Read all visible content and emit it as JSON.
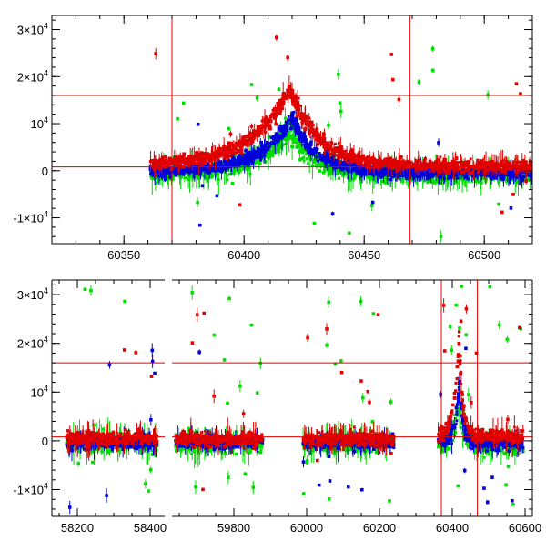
{
  "colors": {
    "red": "#e00000",
    "green": "#00dd00",
    "blue": "#0000dd",
    "axis": "#000000",
    "background": "#ffffff"
  },
  "chart_data": [
    {
      "type": "scatter",
      "panel": "top",
      "title": "",
      "xlabel": "",
      "ylabel": "",
      "xlim": [
        60320,
        60520
      ],
      "ylim": [
        -15500,
        33000
      ],
      "grid": false,
      "legend": "none",
      "x_ticks": [
        60350,
        60400,
        60450,
        60500
      ],
      "x_tick_labels": [
        "60350",
        "60400",
        "60450",
        "60500"
      ],
      "y_ticks": [
        -10000,
        0,
        10000,
        20000,
        30000
      ],
      "y_tick_labels": [
        {
          "mant": "-1×10",
          "exp": "4"
        },
        {
          "mant": "0",
          "exp": ""
        },
        {
          "mant": "10",
          "exp": "4"
        },
        {
          "mant": "2×10",
          "exp": "4"
        },
        {
          "mant": "3×10",
          "exp": "4"
        }
      ],
      "hlines": [
        16000,
        800
      ],
      "vlines": [
        60370,
        60469
      ],
      "series": [
        {
          "color_key": "red",
          "segments": [
            {
              "start": 60361,
              "end": 60520,
              "base": 1000,
              "peak": 16500,
              "peak_x": 60419,
              "wl": 16,
              "wr": 12
            }
          ],
          "scatter": 1700,
          "outliers": 14,
          "outlier_range": [
            -14000,
            32000
          ]
        },
        {
          "color_key": "blue",
          "segments": [
            {
              "start": 60361,
              "end": 60520,
              "base": -400,
              "peak": 11500,
              "peak_x": 60420,
              "wl": 14,
              "wr": 10
            }
          ],
          "scatter": 1700,
          "outliers": 12,
          "outlier_range": [
            -15000,
            10000
          ]
        },
        {
          "color_key": "green",
          "segments": [
            {
              "start": 60361,
              "end": 60520,
              "base": -800,
              "peak": 9500,
              "peak_x": 60419,
              "wl": 14,
              "wr": 10
            }
          ],
          "scatter": 2300,
          "outliers": 24,
          "outlier_range": [
            -15000,
            30000
          ]
        }
      ]
    },
    {
      "type": "scatter",
      "panel": "bottom",
      "title": "",
      "xlabel": "",
      "ylabel": "",
      "xlim": [
        58130,
        60620
      ],
      "ylim": [
        -15500,
        33000
      ],
      "grid": false,
      "legend": "none",
      "axis_break": {
        "left_end": 58450,
        "right_start": 59620
      },
      "x_ticks": [
        58200,
        58400,
        59800,
        60000,
        60200,
        60400,
        60600
      ],
      "x_tick_labels": [
        "58200",
        "58400",
        "59800",
        "60000",
        "60200",
        "60400",
        "60600"
      ],
      "y_ticks": [
        -10000,
        0,
        10000,
        20000,
        30000
      ],
      "y_tick_labels": [
        {
          "mant": "-1×10",
          "exp": "4"
        },
        {
          "mant": "0",
          "exp": ""
        },
        {
          "mant": "10",
          "exp": "4"
        },
        {
          "mant": "2×10",
          "exp": "4"
        },
        {
          "mant": "3×10",
          "exp": "4"
        }
      ],
      "hlines": [
        16000,
        800
      ],
      "vlines": [
        60370,
        60469
      ],
      "series": [
        {
          "color_key": "red",
          "segments": [
            {
              "start": 58170,
              "end": 58420,
              "base": 400,
              "peak": 0,
              "peak_x": 0,
              "wl": 1,
              "wr": 1
            },
            {
              "start": 59640,
              "end": 59880,
              "base": 400,
              "peak": 0,
              "peak_x": 0,
              "wl": 1,
              "wr": 1
            },
            {
              "start": 59990,
              "end": 60240,
              "base": 400,
              "peak": 0,
              "peak_x": 0,
              "wl": 1,
              "wr": 1
            },
            {
              "start": 60361,
              "end": 60595,
              "base": 800,
              "peak": 20000,
              "peak_x": 60419,
              "wl": 14,
              "wr": 10
            }
          ],
          "scatter": 2000,
          "outliers": 30,
          "outlier_range": [
            -14000,
            28000
          ]
        },
        {
          "color_key": "blue",
          "segments": [
            {
              "start": 58170,
              "end": 58420,
              "base": -300,
              "peak": 0,
              "peak_x": 0,
              "wl": 1,
              "wr": 1
            },
            {
              "start": 59640,
              "end": 59880,
              "base": -300,
              "peak": 0,
              "peak_x": 0,
              "wl": 1,
              "wr": 1
            },
            {
              "start": 59990,
              "end": 60240,
              "base": -300,
              "peak": 0,
              "peak_x": 0,
              "wl": 1,
              "wr": 1
            },
            {
              "start": 60361,
              "end": 60595,
              "base": -500,
              "peak": 13000,
              "peak_x": 60420,
              "wl": 12,
              "wr": 9
            }
          ],
          "scatter": 1800,
          "outliers": 24,
          "outlier_range": [
            -15000,
            20000
          ]
        },
        {
          "color_key": "green",
          "segments": [
            {
              "start": 58170,
              "end": 58420,
              "base": -500,
              "peak": 0,
              "peak_x": 0,
              "wl": 1,
              "wr": 1
            },
            {
              "start": 59640,
              "end": 59880,
              "base": -500,
              "peak": 0,
              "peak_x": 0,
              "wl": 1,
              "wr": 1
            },
            {
              "start": 59990,
              "end": 60240,
              "base": -500,
              "peak": 0,
              "peak_x": 0,
              "wl": 1,
              "wr": 1
            },
            {
              "start": 60361,
              "end": 60595,
              "base": -800,
              "peak": 9000,
              "peak_x": 60419,
              "wl": 12,
              "wr": 9
            }
          ],
          "scatter": 2500,
          "outliers": 60,
          "outlier_range": [
            -15000,
            32000
          ]
        }
      ]
    }
  ]
}
